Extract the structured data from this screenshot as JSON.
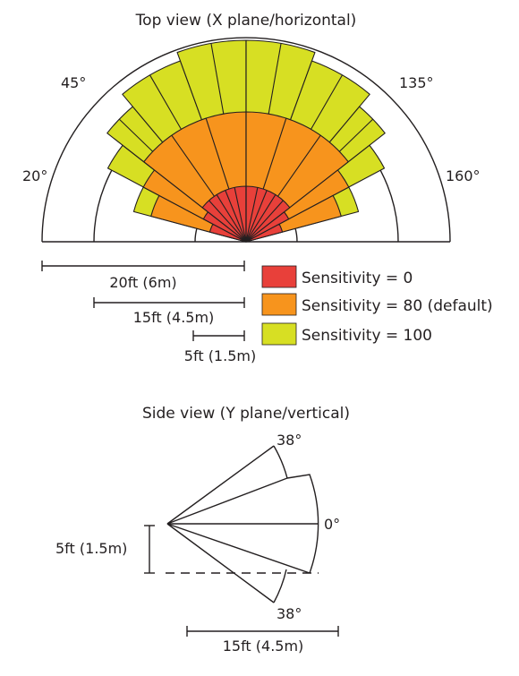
{
  "top_view": {
    "title": "Top view (X plane/horizontal)",
    "angles": [
      "45°",
      "135°",
      "20°",
      "160°"
    ],
    "scale_bars": [
      "20ft (6m)",
      "15ft (4.5m)",
      "5ft (1.5m)"
    ],
    "legend": [
      {
        "label": "Sensitivity = 0",
        "color": "#e8403a"
      },
      {
        "label": "Sensitivity = 80 (default)",
        "color": "#f7941d"
      },
      {
        "label": "Sensitivity = 100",
        "color": "#d7df23"
      }
    ]
  },
  "side_view": {
    "title": "Side view (Y plane/vertical)",
    "angles": [
      "38°",
      "0°",
      "38°"
    ],
    "height_label": "5ft (1.5m)",
    "distance_label": "15ft (4.5m)"
  },
  "colors": {
    "outline": "#231f20",
    "red": "#e8403a",
    "orange": "#f7941d",
    "yellow": "#d7df23"
  }
}
